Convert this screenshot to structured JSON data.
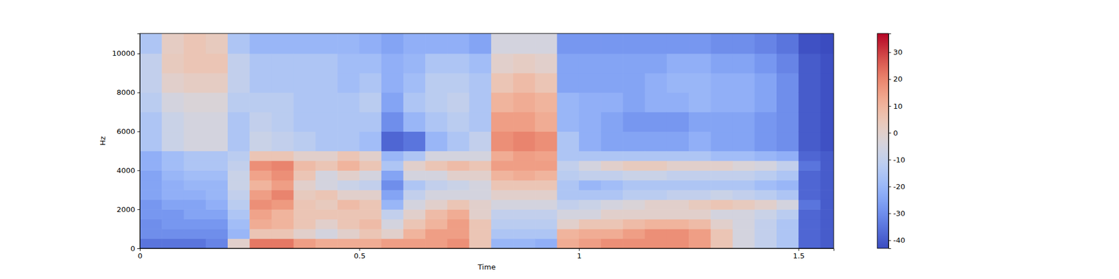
{
  "chart_data": {
    "type": "heatmap",
    "x_label": "Time",
    "y_label": "Hz",
    "xlim": [
      0,
      1.58
    ],
    "xticks": [
      0,
      0.5,
      1,
      1.5
    ],
    "ylim": [
      0,
      11025
    ],
    "yticks": [
      0,
      2000,
      4000,
      6000,
      8000,
      10000
    ],
    "x_bins": [
      0,
      0.05,
      0.1,
      0.15,
      0.2,
      0.25,
      0.3,
      0.35,
      0.4,
      0.45,
      0.5,
      0.55,
      0.6,
      0.65,
      0.7,
      0.75,
      0.8,
      0.85,
      0.9,
      0.95,
      1.0,
      1.05,
      1.1,
      1.15,
      1.2,
      1.25,
      1.3,
      1.35,
      1.4,
      1.45,
      1.5,
      1.55,
      1.58
    ],
    "y_bins": [
      0,
      500,
      1000,
      1500,
      2000,
      2500,
      3000,
      3500,
      4000,
      4500,
      5000,
      6000,
      7000,
      8000,
      9000,
      10000,
      11025
    ],
    "values": [
      [
        -35,
        -30,
        -30,
        -28,
        -28,
        -25,
        -25,
        -25,
        -22,
        -22,
        -15,
        -15,
        -12,
        -10,
        -10,
        -15
      ],
      [
        -35,
        -30,
        -28,
        -28,
        -25,
        -22,
        -22,
        -20,
        -18,
        -18,
        -8,
        -8,
        -5,
        0,
        3,
        2
      ],
      [
        -35,
        -30,
        -28,
        -25,
        -25,
        -22,
        -20,
        -18,
        -15,
        -15,
        -5,
        -5,
        -3,
        2,
        5,
        5
      ],
      [
        -32,
        -30,
        -28,
        -25,
        -22,
        -20,
        -20,
        -18,
        -15,
        -15,
        -5,
        -5,
        -3,
        2,
        5,
        3
      ],
      [
        0,
        -20,
        -18,
        -15,
        -12,
        -10,
        -8,
        -8,
        -10,
        -12,
        -15,
        -15,
        -12,
        -10,
        -10,
        -15
      ],
      [
        22,
        5,
        12,
        14,
        18,
        15,
        10,
        14,
        18,
        5,
        -8,
        -10,
        -12,
        -15,
        -15,
        -20
      ],
      [
        22,
        5,
        10,
        10,
        16,
        20,
        15,
        18,
        20,
        5,
        -10,
        -12,
        -12,
        -15,
        -15,
        -20
      ],
      [
        15,
        0,
        5,
        5,
        5,
        3,
        0,
        5,
        8,
        0,
        -12,
        -15,
        -15,
        -15,
        -15,
        -20
      ],
      [
        12,
        -5,
        0,
        5,
        3,
        5,
        -5,
        -5,
        5,
        0,
        -15,
        -15,
        -15,
        -15,
        -15,
        -20
      ],
      [
        12,
        0,
        5,
        5,
        8,
        0,
        -8,
        0,
        10,
        5,
        -15,
        -15,
        -15,
        -18,
        -18,
        -20
      ],
      [
        12,
        5,
        8,
        5,
        5,
        0,
        -10,
        -5,
        5,
        0,
        -18,
        -15,
        -12,
        -15,
        -18,
        -22
      ],
      [
        15,
        0,
        -5,
        -10,
        -20,
        -25,
        -30,
        -25,
        -15,
        -20,
        -38,
        -30,
        -25,
        -22,
        -22,
        -25
      ],
      [
        15,
        10,
        5,
        0,
        -5,
        -10,
        -15,
        -5,
        0,
        -15,
        -35,
        -20,
        -15,
        -18,
        -20,
        -22
      ],
      [
        15,
        15,
        10,
        8,
        0,
        -5,
        -10,
        -5,
        5,
        -5,
        -20,
        -15,
        -12,
        -12,
        -15,
        -22
      ],
      [
        18,
        15,
        15,
        12,
        5,
        -5,
        -8,
        0,
        8,
        -5,
        -15,
        -12,
        -10,
        -12,
        -15,
        -22
      ],
      [
        5,
        5,
        5,
        0,
        0,
        -5,
        -5,
        0,
        5,
        -5,
        -10,
        -15,
        -15,
        -15,
        -18,
        -25
      ],
      [
        -20,
        -15,
        -12,
        -10,
        -5,
        0,
        5,
        10,
        15,
        12,
        18,
        15,
        10,
        5,
        0,
        -5
      ],
      [
        -20,
        -15,
        -12,
        -10,
        -5,
        0,
        5,
        12,
        15,
        15,
        20,
        15,
        12,
        8,
        2,
        -5
      ],
      [
        -22,
        -15,
        -12,
        -10,
        -5,
        0,
        5,
        10,
        15,
        14,
        18,
        12,
        10,
        5,
        0,
        -5
      ],
      [
        12,
        10,
        0,
        -5,
        -10,
        -15,
        -15,
        -12,
        -10,
        -15,
        -15,
        -20,
        -20,
        -25,
        -25,
        -28
      ],
      [
        15,
        12,
        5,
        -5,
        -8,
        -15,
        -20,
        -10,
        -5,
        -15,
        -22,
        -22,
        -22,
        -25,
        -25,
        -28
      ],
      [
        18,
        12,
        5,
        0,
        -5,
        -15,
        -18,
        -10,
        0,
        -15,
        -25,
        -25,
        -22,
        -25,
        -25,
        -28
      ],
      [
        18,
        15,
        8,
        0,
        -3,
        -12,
        -15,
        -8,
        3,
        -15,
        -25,
        -28,
        -25,
        -25,
        -25,
        -28
      ],
      [
        18,
        18,
        10,
        0,
        0,
        -12,
        -15,
        -8,
        3,
        -15,
        -25,
        -28,
        -22,
        -22,
        -25,
        -28
      ],
      [
        18,
        18,
        10,
        0,
        0,
        -10,
        -15,
        -10,
        0,
        -15,
        -25,
        -28,
        -22,
        -20,
        -22,
        -28
      ],
      [
        15,
        15,
        8,
        0,
        3,
        -10,
        -15,
        -10,
        0,
        -15,
        -22,
        -25,
        -20,
        -20,
        -22,
        -28
      ],
      [
        5,
        5,
        0,
        -5,
        5,
        -8,
        -15,
        -10,
        0,
        -18,
        -25,
        -25,
        -22,
        -22,
        -25,
        -30
      ],
      [
        -5,
        -5,
        -5,
        -5,
        3,
        -10,
        -15,
        -10,
        -3,
        -18,
        -25,
        -25,
        -22,
        -22,
        -25,
        -30
      ],
      [
        -10,
        -10,
        -10,
        -8,
        0,
        -12,
        -18,
        -12,
        -5,
        -20,
        -28,
        -28,
        -25,
        -25,
        -28,
        -32
      ],
      [
        -15,
        -15,
        -15,
        -12,
        -5,
        -15,
        -20,
        -15,
        -10,
        -22,
        -30,
        -30,
        -30,
        -30,
        -32,
        -35
      ],
      [
        -38,
        -38,
        -38,
        -38,
        -35,
        -38,
        -38,
        -38,
        -35,
        -38,
        -40,
        -40,
        -40,
        -40,
        -40,
        -42
      ],
      [
        -40,
        -40,
        -40,
        -40,
        -40,
        -40,
        -40,
        -40,
        -40,
        -40,
        -42,
        -42,
        -42,
        -42,
        -42,
        -43
      ]
    ],
    "colorbar_range": [
      -43,
      37
    ],
    "colorbar_ticks": [
      -40,
      -30,
      -20,
      -10,
      0,
      10,
      20,
      30
    ]
  }
}
